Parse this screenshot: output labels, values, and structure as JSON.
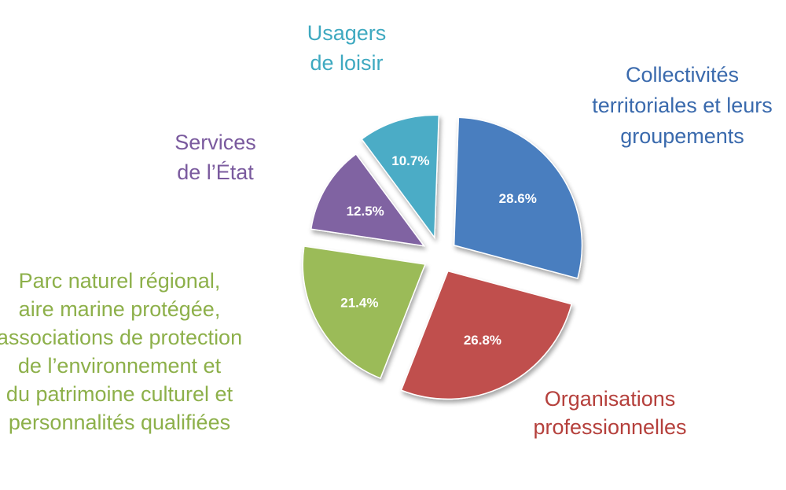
{
  "chart_data": {
    "type": "pie",
    "exploded": true,
    "slices": [
      {
        "label": [
          "Collectivités",
          "territoriales et leurs",
          "groupements"
        ],
        "value": 28.6,
        "value_label": "28.6%",
        "color": "#4a7ebf"
      },
      {
        "label": [
          "Organisations",
          "professionnelles"
        ],
        "value": 26.8,
        "value_label": "26.8%",
        "color": "#c0504d"
      },
      {
        "label": [
          "Parc naturel régional,",
          "aire marine protégée,",
          "associations de protection",
          "de l’environnement et",
          "du patrimoine culturel et",
          "personnalités qualifiées"
        ],
        "value": 21.4,
        "value_label": "21.4%",
        "color": "#9bbb59"
      },
      {
        "label": [
          "Services",
          "de l’État"
        ],
        "value": 12.5,
        "value_label": "12.5%",
        "color": "#8064a2"
      },
      {
        "label": [
          "Usagers",
          "de loisir"
        ],
        "value": 10.7,
        "value_label": "10.7%",
        "color": "#4bacc6"
      }
    ],
    "label_colors": [
      "#3a6aad",
      "#b5403c",
      "#8db04a",
      "#7a5a9e",
      "#3ea9c0"
    ]
  }
}
